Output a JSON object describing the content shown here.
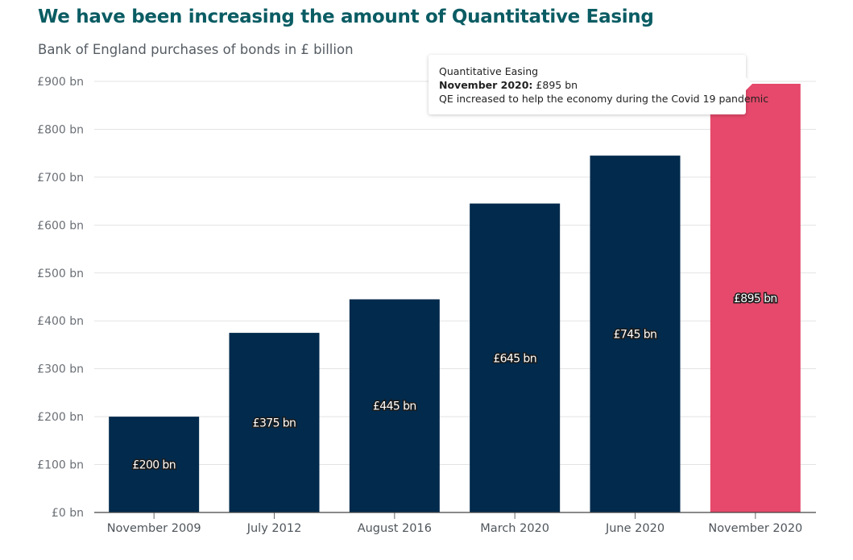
{
  "chart_data": {
    "type": "bar",
    "title": "We have been increasing the amount of Quantitative Easing",
    "subtitle": "Bank of England purchases of bonds in £ billion",
    "categories": [
      "November 2009",
      "July 2012",
      "August 2016",
      "March 2020",
      "June 2020",
      "November 2020"
    ],
    "values": [
      200,
      375,
      445,
      645,
      745,
      895
    ],
    "data_labels": [
      "£200 bn",
      "£375 bn",
      "£445 bn",
      "£645 bn",
      "£745 bn",
      "£895 bn"
    ],
    "ylim": [
      0,
      900
    ],
    "yticks": [
      0,
      100,
      200,
      300,
      400,
      500,
      600,
      700,
      800,
      900
    ],
    "ytick_labels": [
      "£0 bn",
      "£100 bn",
      "£200 bn",
      "£300 bn",
      "£400 bn",
      "£500 bn",
      "£600 bn",
      "£700 bn",
      "£800 bn",
      "£900 bn"
    ],
    "grid": true,
    "colors": {
      "bar": "#022a4c",
      "highlight": "#e6496b",
      "title": "#0a5c63",
      "grid": "#e3e3e3"
    },
    "highlight_index": 5
  },
  "tooltip": {
    "series": "Quantitative Easing",
    "point_label": "November 2020:",
    "point_value": "£895 bn",
    "note": "QE increased to help the economy during the Covid 19 pandemic"
  }
}
